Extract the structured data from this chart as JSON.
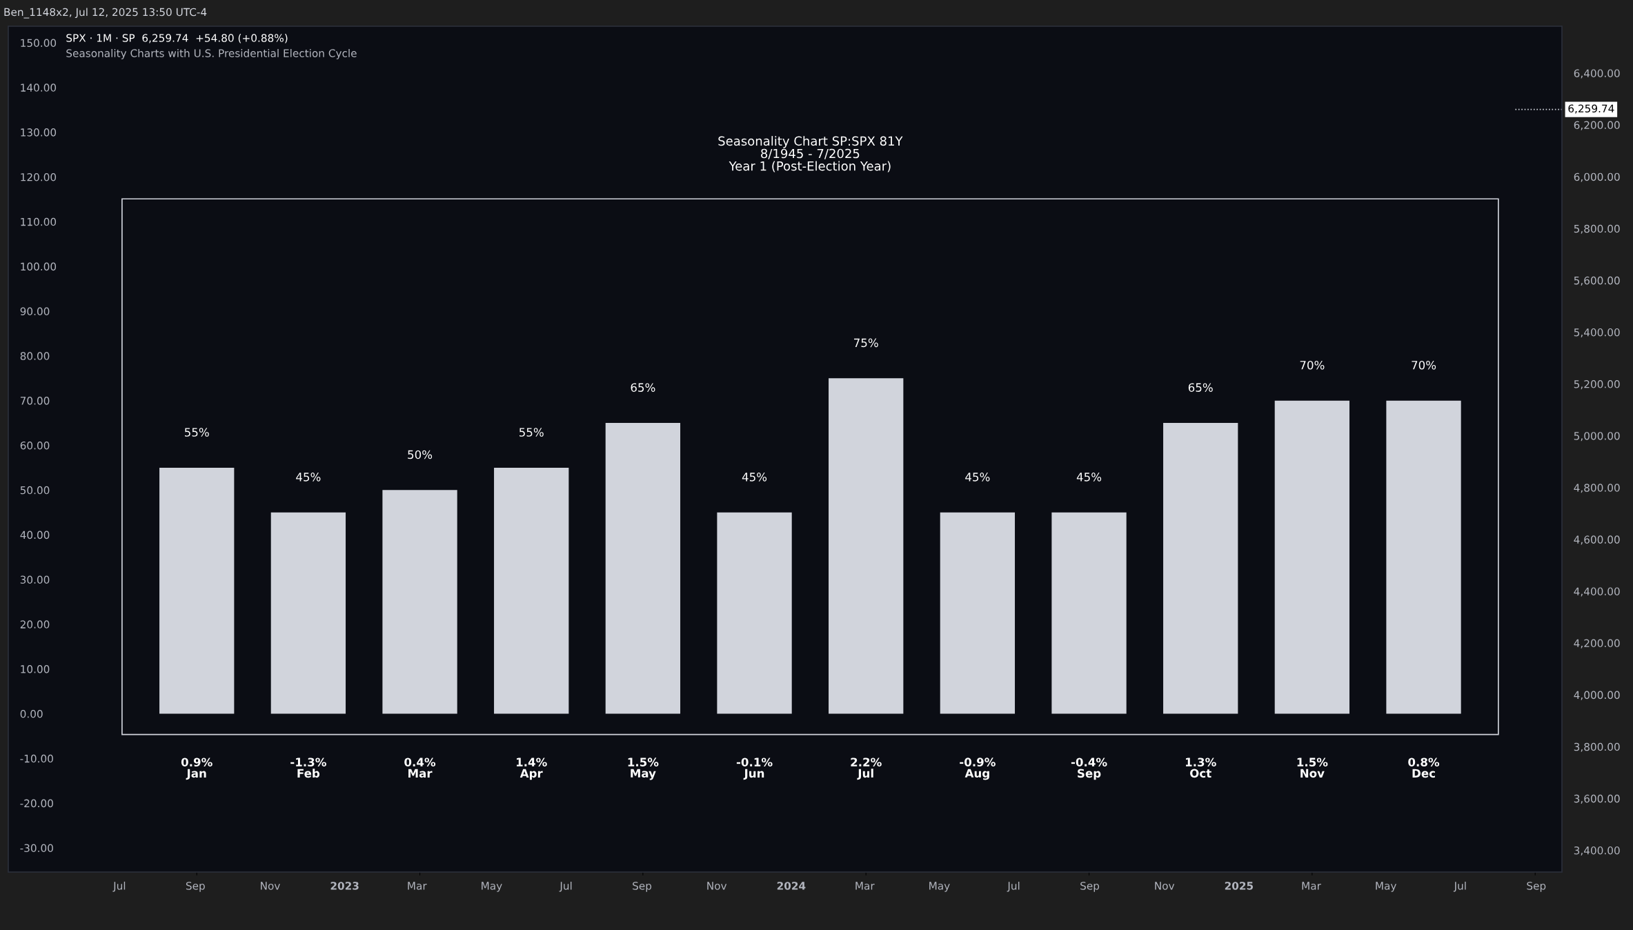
{
  "chart_data": {
    "type": "bar",
    "title": "Seasonality Chart SP:SPX 81Y\n8/1945 - 7/2025\nYear 1 (Post-Election Year)",
    "annotations": [
      "SPX · 1M · SP  6,259.74  +54.80 (+0.88%)",
      "Seasonality Charts with U.S. Presidential Election Cycle",
      "Ben_1148x2, Jul 12, 2025 13:50 UTC-4"
    ],
    "categories": [
      "0.9%\nJan",
      "-1.3%\nFeb",
      "0.4%\nMar",
      "1.4%\nApr",
      "1.5%\nMay",
      "-0.1%\nJun",
      "2.2%\nJul",
      "-0.9%\nAug",
      "-0.4%\nSep",
      "1.3%\nOct",
      "1.5%\nNov",
      "0.8%\nDec"
    ],
    "values": [
      55,
      45,
      50,
      55,
      65,
      45,
      75,
      45,
      45,
      65,
      70,
      70
    ],
    "value_labels": [
      "55%",
      "45%",
      "50%",
      "55%",
      "65%",
      "45%",
      "75%",
      "45%",
      "45%",
      "65%",
      "70%",
      "70%"
    ],
    "color": "#d1d4dc",
    "ylim": [
      -35.4,
      153.7
    ],
    "yticks": [
      {
        "value": -30,
        "label": "-30.00"
      },
      {
        "value": -20,
        "label": "-20.00"
      },
      {
        "value": -10,
        "label": "-10.00"
      },
      {
        "value": 0,
        "label": "0.00"
      },
      {
        "value": 10,
        "label": "10.00"
      },
      {
        "value": 20,
        "label": "20.00"
      },
      {
        "value": 30,
        "label": "30.00"
      },
      {
        "value": 40,
        "label": "40.00"
      },
      {
        "value": 50,
        "label": "50.00"
      },
      {
        "value": 60,
        "label": "60.00"
      },
      {
        "value": 70,
        "label": "70.00"
      },
      {
        "value": 80,
        "label": "80.00"
      },
      {
        "value": 90,
        "label": "90.00"
      },
      {
        "value": 100,
        "label": "100.00"
      },
      {
        "value": 110,
        "label": "110.00"
      },
      {
        "value": 120,
        "label": "120.00"
      },
      {
        "value": 130,
        "label": "130.00"
      },
      {
        "value": 140,
        "label": "140.00"
      },
      {
        "value": 150,
        "label": "150.00"
      }
    ],
    "y2lim": [
      3316,
      6581
    ],
    "y2ticks": [
      {
        "value": 3400,
        "label": "3,400.00"
      },
      {
        "value": 3600,
        "label": "3,600.00"
      },
      {
        "value": 3800,
        "label": "3,800.00"
      },
      {
        "value": 4000,
        "label": "4,000.00"
      },
      {
        "value": 4200,
        "label": "4,200.00"
      },
      {
        "value": 4400,
        "label": "4,400.00"
      },
      {
        "value": 4600,
        "label": "4,600.00"
      },
      {
        "value": 4800,
        "label": "4,800.00"
      },
      {
        "value": 5000,
        "label": "5,000.00"
      },
      {
        "value": 5200,
        "label": "5,200.00"
      },
      {
        "value": 5400,
        "label": "5,400.00"
      },
      {
        "value": 5600,
        "label": "5,600.00"
      },
      {
        "value": 5800,
        "label": "5,800.00"
      },
      {
        "value": 6000,
        "label": "6,000.00"
      },
      {
        "value": 6200,
        "label": "6,200.00"
      },
      {
        "value": 6400,
        "label": "6,400.00"
      }
    ],
    "x2lim": [
      "2022-04-01",
      "2025-09-22"
    ],
    "x2ticks": [
      {
        "value": "2022-07",
        "label": "Jul"
      },
      {
        "value": "2022-09",
        "label": "Sep"
      },
      {
        "value": "2022-11",
        "label": "Nov"
      },
      {
        "value": "2023-01",
        "label": "2023"
      },
      {
        "value": "2023-03",
        "label": "Mar"
      },
      {
        "value": "2023-05",
        "label": "May"
      },
      {
        "value": "2023-07",
        "label": "Jul"
      },
      {
        "value": "2023-09",
        "label": "Sep"
      },
      {
        "value": "2023-11",
        "label": "Nov"
      },
      {
        "value": "2024-01",
        "label": "2024"
      },
      {
        "value": "2024-03",
        "label": "Mar"
      },
      {
        "value": "2024-05",
        "label": "May"
      },
      {
        "value": "2024-07",
        "label": "Jul"
      },
      {
        "value": "2024-09",
        "label": "Sep"
      },
      {
        "value": "2024-11",
        "label": "Nov"
      },
      {
        "value": "2025-01",
        "label": "2025"
      },
      {
        "value": "2025-03",
        "label": "Mar"
      },
      {
        "value": "2025-05",
        "label": "May"
      },
      {
        "value": "2025-07",
        "label": "Jul"
      },
      {
        "value": "2025-09",
        "label": "Sep"
      }
    ],
    "ref_lines": [
      {
        "axis": "y2",
        "value": 6259.74,
        "label": "6,259.74"
      }
    ],
    "grid": false,
    "legend": false
  }
}
